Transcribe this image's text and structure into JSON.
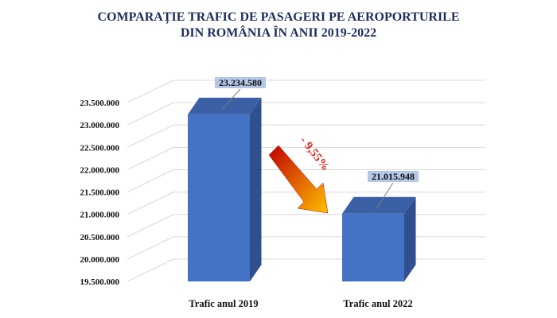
{
  "chart_data": {
    "type": "bar",
    "title_lines": [
      "COMPARAȚIE TRAFIC DE PASAGERI PE AEROPORTURILE",
      "DIN ROMÂNIA ÎN  ANII 2019-2022"
    ],
    "categories": [
      "Trafic anul 2019",
      "Trafic anul 2022"
    ],
    "values": [
      23234580,
      21015948
    ],
    "data_labels": [
      "23.234.580",
      "21.015.948"
    ],
    "ylim": [
      19500000,
      23500000
    ],
    "y_ticks": [
      19500000,
      20000000,
      20500000,
      21000000,
      21500000,
      22000000,
      22500000,
      23000000,
      23500000
    ],
    "y_tick_labels": [
      "19.500.000",
      "20.000.000",
      "20.500.000",
      "21.000.000",
      "21.500.000",
      "22.000.000",
      "22.500.000",
      "23.000.000",
      "23.500.000"
    ],
    "grid": true,
    "annotation": "- 9,55%",
    "colors": {
      "bar_front": "#4472c4",
      "bar_side": "#2f4f8f",
      "bar_top": "#3a5fa5",
      "label_bg": "#b4c7e7",
      "annotation": "#e0201a",
      "arrow_start": "#c00000",
      "arrow_end": "#ffc000",
      "title": "#1f2d5c"
    }
  }
}
